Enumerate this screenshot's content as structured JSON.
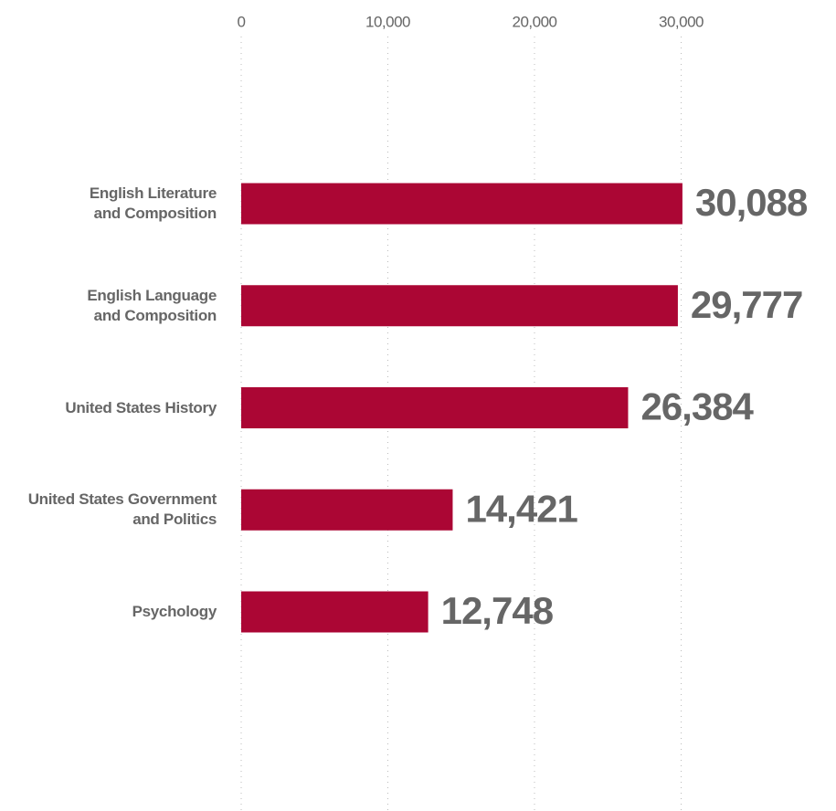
{
  "chart_data": {
    "type": "bar",
    "orientation": "horizontal",
    "categories": [
      "English Literature\nand Composition",
      "English Language\nand Composition",
      "United States History",
      "United States Government\nand Politics",
      "Psychology"
    ],
    "values": [
      30088,
      29777,
      26384,
      14421,
      12748
    ],
    "value_labels": [
      "30,088",
      "29,777",
      "26,384",
      "14,421",
      "12,748"
    ],
    "color": "#ab0634",
    "xlim": [
      0,
      40000
    ],
    "xticks": [
      0,
      {
        "value": 10000,
        "label": "10,000"
      },
      {
        "value": 20000,
        "label": "20,000"
      },
      {
        "value": 30000,
        "label": "30,000"
      }
    ],
    "grid": true
  }
}
